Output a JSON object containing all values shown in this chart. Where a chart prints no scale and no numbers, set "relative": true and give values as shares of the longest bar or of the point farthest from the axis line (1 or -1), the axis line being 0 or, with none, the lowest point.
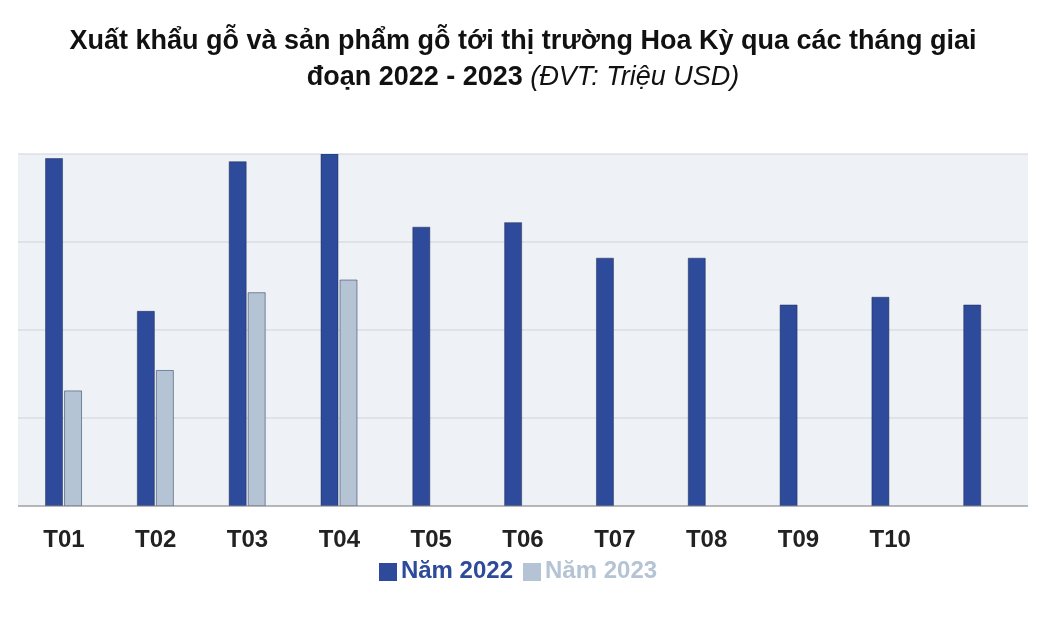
{
  "chart_data": {
    "type": "bar",
    "title": "Xuất khẩu gỗ và sản phẩm gỗ tới thị trường Hoa Kỳ qua các tháng giai đoạn 2022 - 2023",
    "subtitle": "(ĐVT: Triệu USD)",
    "relative": true,
    "categories": [
      "T01",
      "T02",
      "T03",
      "T04",
      "T05",
      "T06",
      "T07",
      "T08",
      "T09",
      "T10",
      null
    ],
    "series": [
      {
        "name": "Năm 2022",
        "color": "#2e4a9a",
        "values": [
          0.987,
          0.553,
          0.978,
          1,
          0.792,
          0.805,
          0.704,
          0.704,
          0.571,
          0.593,
          0.571
        ]
      },
      {
        "name": "Năm 2023",
        "color": "#b4c4d4",
        "values": [
          0.327,
          0.385,
          0.606,
          0.642,
          null,
          null,
          null,
          null,
          null,
          null,
          null
        ]
      }
    ],
    "grid": "y",
    "legend": "bottom"
  }
}
